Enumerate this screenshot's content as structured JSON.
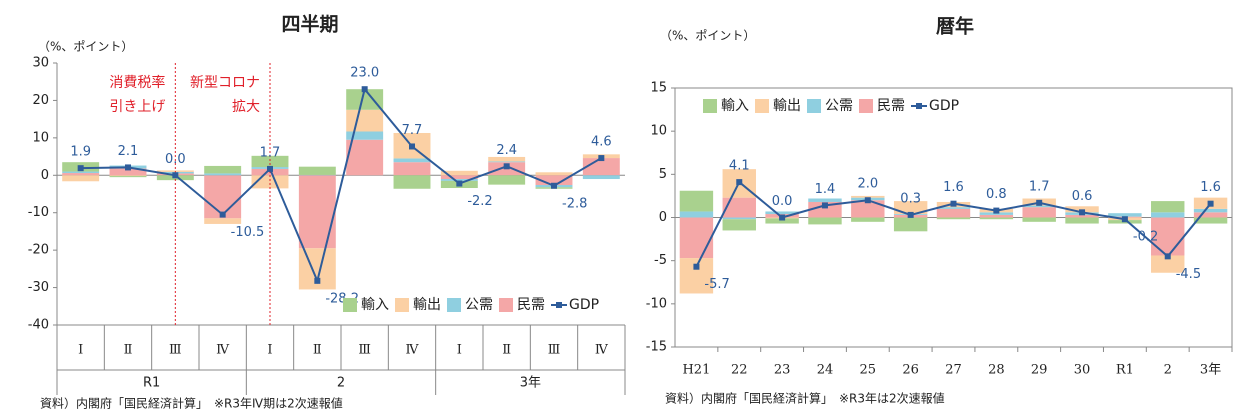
{
  "chart_data": [
    {
      "type": "bar",
      "stacked": true,
      "title": "四半期",
      "unit_label": "（%、ポイント）",
      "categories": [
        "Ⅰ",
        "Ⅱ",
        "Ⅲ",
        "Ⅳ",
        "Ⅰ",
        "Ⅱ",
        "Ⅲ",
        "Ⅳ",
        "Ⅰ",
        "Ⅱ",
        "Ⅲ",
        "Ⅳ"
      ],
      "groups": [
        {
          "name": "R1",
          "size": 4
        },
        {
          "name": "2",
          "size": 4
        },
        {
          "name": "3年",
          "size": 4
        }
      ],
      "series": [
        {
          "name": "輸入",
          "color": "#a9d18e",
          "values": [
            2.5,
            -0.3,
            -1.3,
            2.0,
            3.0,
            2.2,
            5.5,
            -3.6,
            -1.9,
            -2.5,
            -0.4,
            0.0
          ]
        },
        {
          "name": "輸出",
          "color": "#fbd0a4",
          "values": [
            -1.6,
            -0.2,
            0.4,
            -1.5,
            -3.5,
            -11.0,
            5.8,
            6.8,
            1.2,
            1.2,
            0.8,
            1.0
          ]
        },
        {
          "name": "公需",
          "color": "#8fcfe0",
          "values": [
            0.4,
            0.8,
            0.4,
            0.5,
            0.5,
            0.1,
            2.2,
            1.0,
            -0.5,
            0.2,
            -0.6,
            -1.0
          ]
        },
        {
          "name": "民需",
          "color": "#f4a7a7",
          "values": [
            0.6,
            1.8,
            0.5,
            -11.5,
            1.7,
            -19.5,
            9.5,
            3.5,
            -1.0,
            3.5,
            -2.6,
            4.6
          ]
        },
        {
          "name": "GDP",
          "type": "line",
          "color": "#2e5c9a",
          "values": [
            1.9,
            2.1,
            0.0,
            -10.5,
            1.7,
            -28.2,
            23.0,
            7.7,
            -2.2,
            2.4,
            -2.8,
            4.6
          ],
          "value_labels": [
            "1.9",
            "2.1",
            "0.0",
            "-10.5",
            "1.7",
            "-28.2",
            "23.0",
            "7.7",
            "-2.2",
            "2.4",
            "-2.8",
            "4.6"
          ]
        }
      ],
      "ylim": [
        -40,
        30
      ],
      "yticks": [
        -40,
        -30,
        -20,
        -10,
        0,
        10,
        20,
        30
      ],
      "legend": "lower right",
      "annotations": [
        {
          "text": [
            "消費税率",
            "引き上げ"
          ],
          "category_index": 2,
          "color": "#e0202a"
        },
        {
          "text": [
            "新型コロナ",
            "拡大"
          ],
          "category_index": 4,
          "color": "#e0202a"
        }
      ],
      "footnote": "資料）内閣府「国民経済計算」　※R3年Ⅳ期は2次速報値"
    },
    {
      "type": "bar",
      "stacked": true,
      "title": "暦年",
      "unit_label": "（%、ポイント）",
      "categories": [
        "H21",
        "22",
        "23",
        "24",
        "25",
        "26",
        "27",
        "28",
        "29",
        "30",
        "R1",
        "2",
        "3年"
      ],
      "series": [
        {
          "name": "輸入",
          "color": "#a9d18e",
          "values": [
            2.4,
            -1.3,
            -0.6,
            -0.8,
            -0.5,
            -1.6,
            -0.2,
            -0.2,
            -0.5,
            -0.7,
            -0.4,
            1.3,
            -0.7
          ]
        },
        {
          "name": "輸出",
          "color": "#fbd0a4",
          "values": [
            -4.1,
            3.3,
            -0.1,
            0.0,
            0.2,
            1.5,
            0.6,
            0.4,
            0.8,
            0.7,
            -0.3,
            -2.0,
            1.3
          ]
        },
        {
          "name": "公需",
          "color": "#8fcfe0",
          "values": [
            0.7,
            -0.2,
            0.3,
            0.4,
            0.3,
            0.1,
            0.2,
            0.3,
            0.2,
            0.3,
            0.4,
            0.6,
            0.4
          ]
        },
        {
          "name": "民需",
          "color": "#f4a7a7",
          "values": [
            -4.7,
            2.3,
            0.4,
            1.8,
            2.0,
            0.3,
            1.0,
            0.3,
            1.2,
            0.3,
            0.1,
            -4.4,
            0.6
          ]
        },
        {
          "name": "GDP",
          "type": "line",
          "color": "#2e5c9a",
          "values": [
            -5.7,
            4.1,
            0.0,
            1.4,
            2.0,
            0.3,
            1.6,
            0.8,
            1.7,
            0.6,
            -0.2,
            -4.5,
            1.6
          ],
          "value_labels": [
            "-5.7",
            "4.1",
            "0.0",
            "1.4",
            "2.0",
            "0.3",
            "1.6",
            "0.8",
            "1.7",
            "0.6",
            "-0.2",
            "-4.5",
            "1.6"
          ]
        }
      ],
      "ylim": [
        -15,
        15
      ],
      "yticks": [
        -15,
        -10,
        -5,
        0,
        5,
        10,
        15
      ],
      "legend": "upper left",
      "footnote": "資料）内閣府「国民経済計算」　※R3年は2次速報値"
    }
  ]
}
